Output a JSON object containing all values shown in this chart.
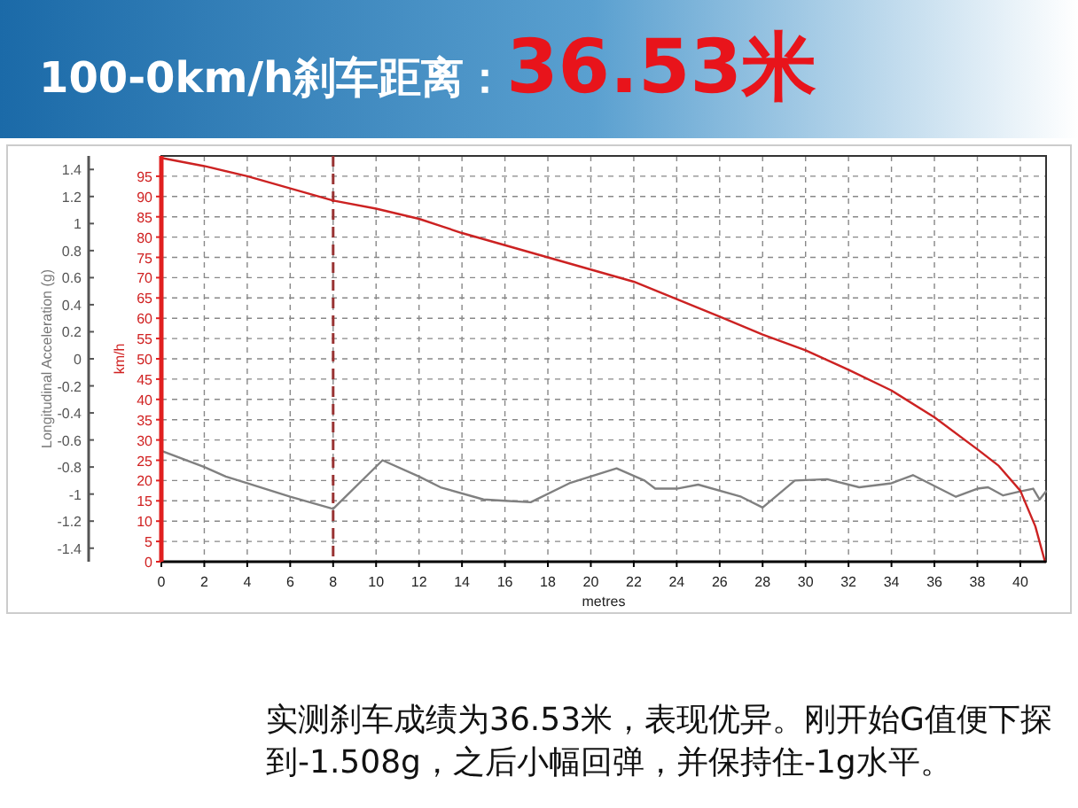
{
  "chart_data": {
    "type": "line",
    "title": "100-0km/h刹车距离：36.53米",
    "xlabel": "metres",
    "ylabel": "Longitudinal Acceleration (g)",
    "y2label": "km/h",
    "xlim": [
      0,
      41.2
    ],
    "xticks": [
      0,
      2,
      4,
      6,
      8,
      10,
      12,
      14,
      16,
      18,
      20,
      22,
      24,
      26,
      28,
      30,
      32,
      34,
      36,
      38,
      40
    ],
    "ylim": [
      -1.5,
      1.5
    ],
    "yticks": [
      -1.4,
      -1.2,
      -1,
      -0.8,
      -0.6,
      -0.4,
      -0.2,
      0,
      0.2,
      0.4,
      0.6,
      0.8,
      1,
      1.2,
      1.4
    ],
    "y2lim": [
      0,
      100
    ],
    "y2ticks": [
      0,
      5,
      10,
      15,
      20,
      25,
      30,
      35,
      40,
      45,
      50,
      55,
      60,
      65,
      70,
      75,
      80,
      85,
      90,
      95
    ],
    "grid": true,
    "ref_lines": [
      {
        "axis": "x",
        "value": 8,
        "color": "#993333",
        "line_style": "dashed"
      }
    ],
    "series": [
      {
        "color": "#808080",
        "axis": "y",
        "x": [
          0,
          2,
          3,
          4,
          6,
          8,
          10.3,
          12,
          13,
          15,
          16,
          17.2,
          19,
          21.2,
          22.5,
          23,
          24,
          25,
          27,
          28,
          29.5,
          31,
          32.5,
          34,
          35,
          37,
          38,
          38.5,
          39.2,
          40,
          40.6,
          40.9,
          41.2
        ],
        "values": [
          -0.68,
          -0.8,
          -0.87,
          -0.92,
          -1.02,
          -1.11,
          -0.75,
          -0.87,
          -0.95,
          -1.04,
          -1.05,
          -1.06,
          -0.92,
          -0.81,
          -0.9,
          -0.96,
          -0.96,
          -0.93,
          -1.02,
          -1.1,
          -0.9,
          -0.89,
          -0.95,
          -0.92,
          -0.86,
          -1.02,
          -0.96,
          -0.95,
          -1.01,
          -0.98,
          -0.96,
          -1.04,
          -0.98
        ]
      },
      {
        "color": "#cc2222",
        "axis": "y2",
        "x": [
          0,
          2,
          4,
          6,
          8,
          10,
          12,
          14,
          16,
          18,
          20,
          22,
          24,
          26,
          28,
          30,
          32,
          34,
          36,
          38,
          39,
          40,
          40.7,
          41.15
        ],
        "values": [
          99.5,
          97.5,
          95,
          92,
          89,
          87,
          84.5,
          81,
          78,
          75,
          72,
          69,
          64.7,
          60.4,
          56,
          52.1,
          47.3,
          42.2,
          35.6,
          27.7,
          23.6,
          17.5,
          8.7,
          0
        ]
      }
    ],
    "annotations": [
      "实测刹车成绩为36.53米，表现优异。刚开始G值便下探到-1.508g，之后小幅回弹，并保持住-1g水平。"
    ]
  }
}
